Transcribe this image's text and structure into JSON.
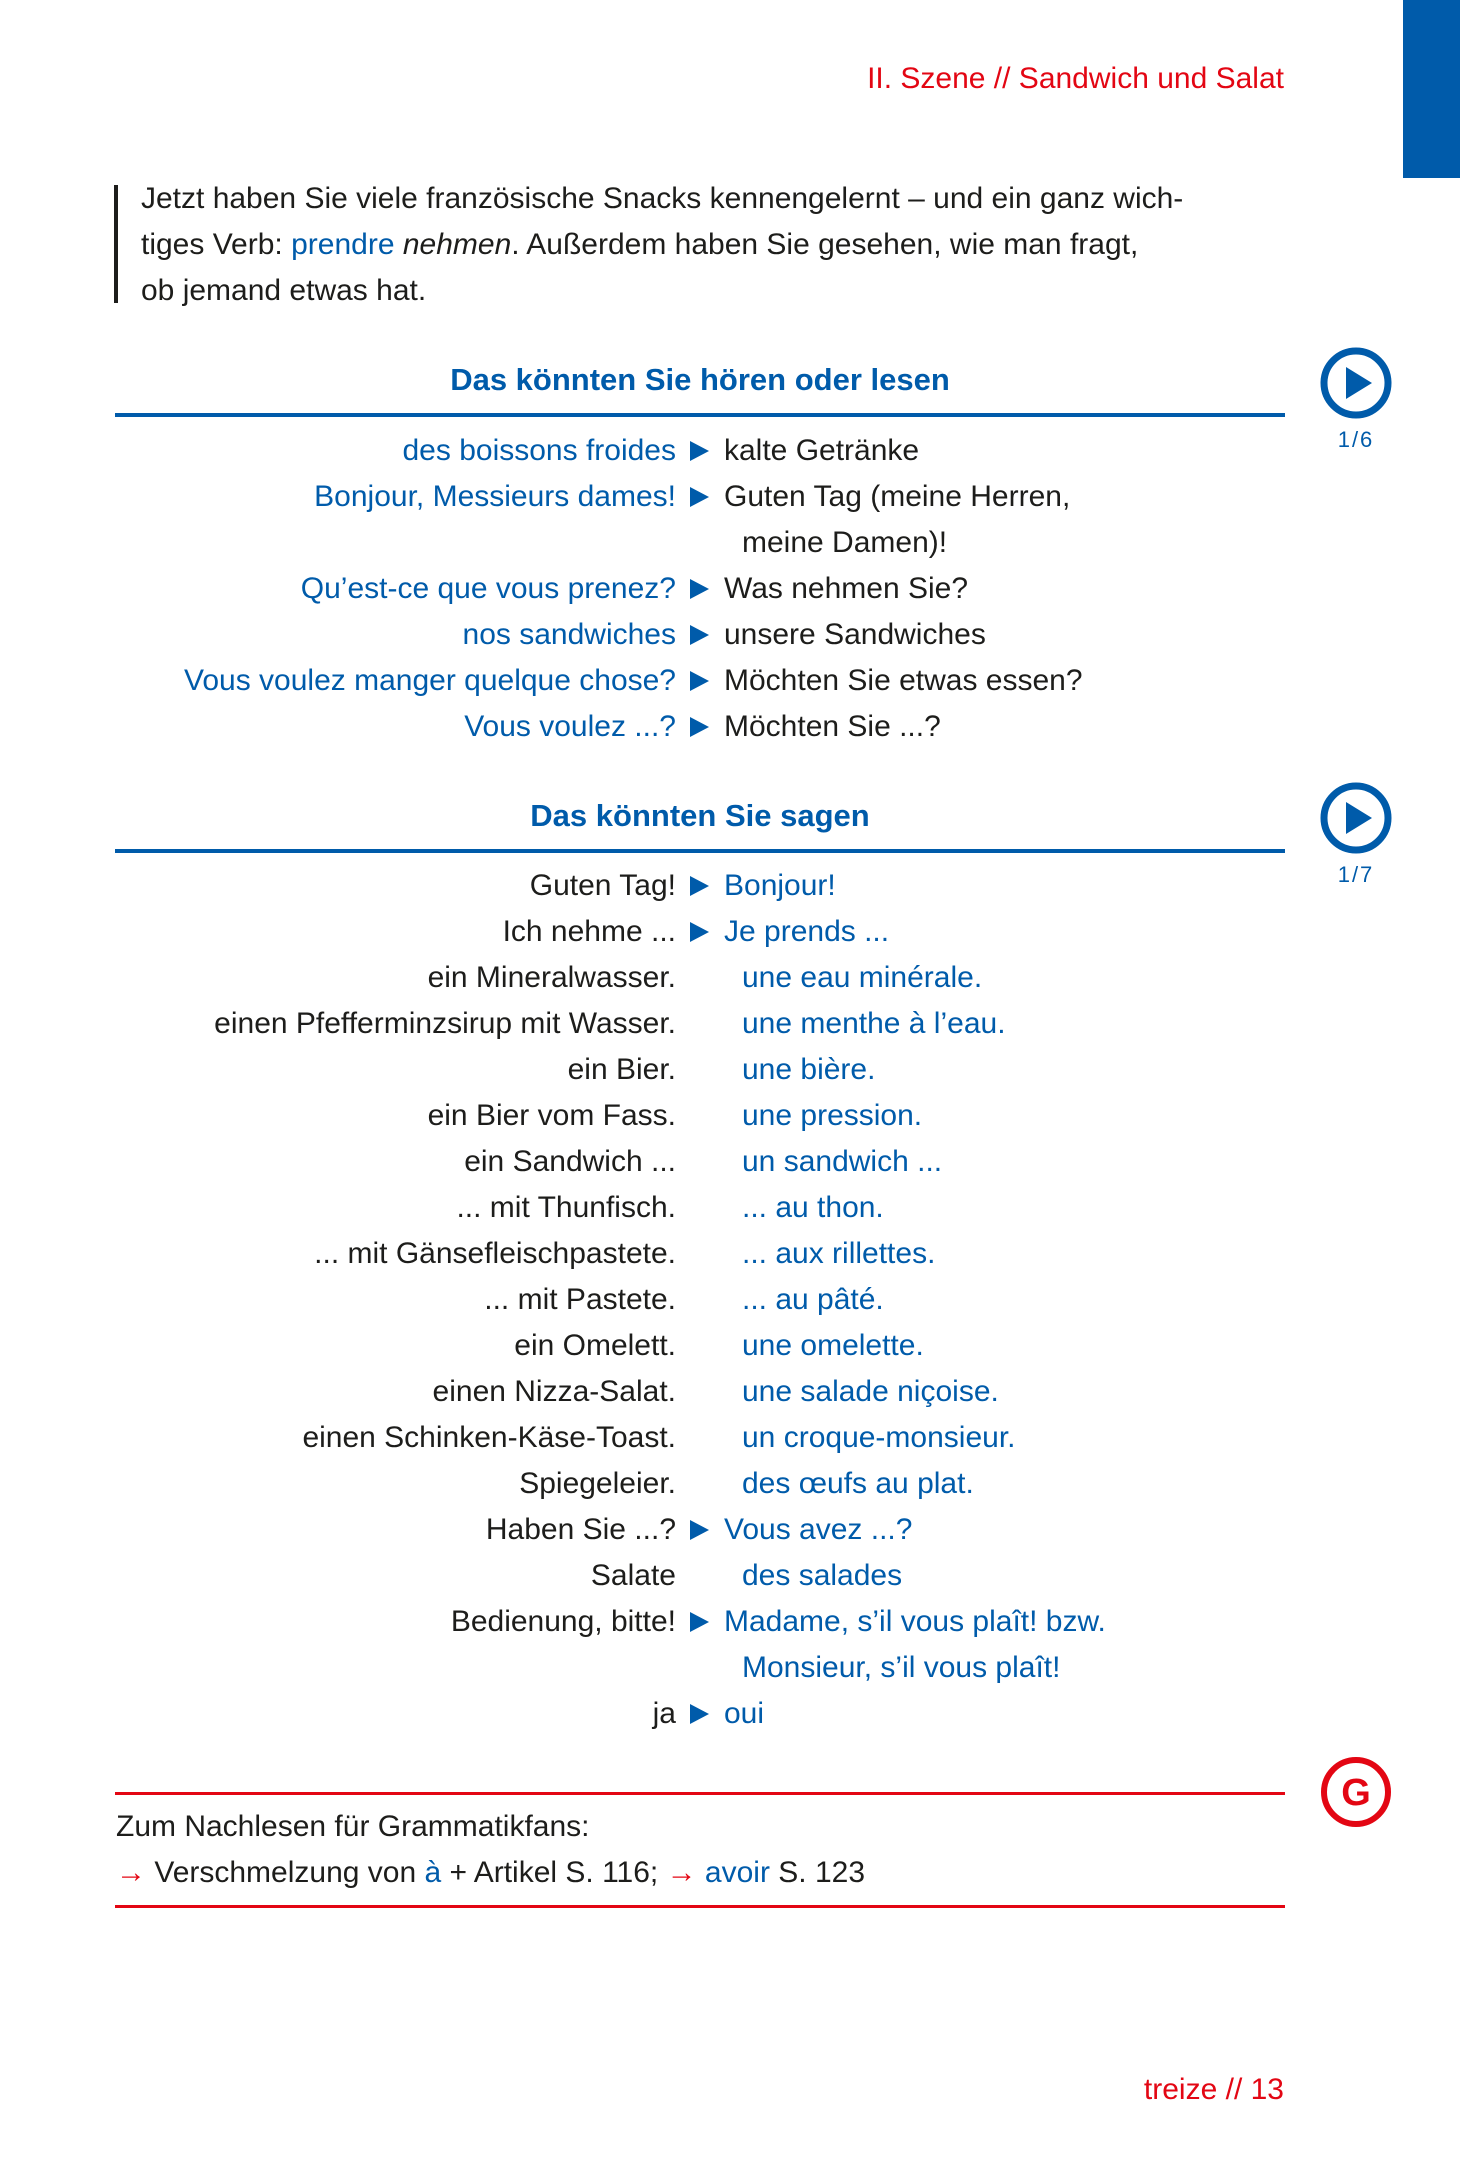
{
  "header": {
    "running_title": "II. Szene // Sandwich und Salat",
    "accent_color": "#005baa",
    "red_color": "#e30613"
  },
  "intro": {
    "part1": "Jetzt haben Sie viele französische Snacks kennengelernt – und ein ganz wich-",
    "part2": "tiges Verb: ",
    "fr_word": "prendre",
    "de_word": "nehmen",
    "part3": ". Außerdem haben Sie gesehen, wie man fragt,",
    "part4": "ob jemand etwas hat."
  },
  "section_hear": {
    "title": "Das könnten Sie hören oder lesen",
    "audio_track": "1/6",
    "icon": "play-circle-icon",
    "rows": [
      {
        "left": "des boissons froides",
        "right": "kalte Getränke",
        "arrow": true
      },
      {
        "left": "Bonjour, Messieurs dames!",
        "right": "Guten Tag (meine Herren,",
        "arrow": true
      },
      {
        "left": "",
        "right": "meine Damen)!",
        "arrow": false
      },
      {
        "left": "Qu’est-ce que vous prenez?",
        "right": "Was nehmen Sie?",
        "arrow": true
      },
      {
        "left": "nos sandwiches",
        "right": "unsere Sandwiches",
        "arrow": true
      },
      {
        "left": "Vous voulez manger quelque chose?",
        "right": "Möchten Sie etwas essen?",
        "arrow": true
      },
      {
        "left": "Vous voulez ...?",
        "right": "Möchten Sie ...?",
        "arrow": true
      }
    ]
  },
  "section_say": {
    "title": "Das könnten Sie sagen",
    "audio_track": "1/7",
    "icon": "play-circle-icon",
    "rows": [
      {
        "left": "Guten Tag!",
        "right": "Bonjour!",
        "arrow": true
      },
      {
        "left": "Ich nehme ...",
        "right": "Je prends ...",
        "arrow": true
      },
      {
        "left": "ein Mineralwasser.",
        "right": "une eau minérale.",
        "arrow": false
      },
      {
        "left": "einen Pfefferminzsirup mit Wasser.",
        "right": "une menthe à l’eau.",
        "arrow": false
      },
      {
        "left": "ein Bier.",
        "right": "une bière.",
        "arrow": false
      },
      {
        "left": "ein Bier vom Fass.",
        "right": "une pression.",
        "arrow": false
      },
      {
        "left": "ein Sandwich ...",
        "right": "un sandwich ...",
        "arrow": false
      },
      {
        "left": "... mit Thunfisch.",
        "right": "... au thon.",
        "arrow": false
      },
      {
        "left": "... mit Gänsefleischpastete.",
        "right": "... aux rillettes.",
        "arrow": false
      },
      {
        "left": "... mit Pastete.",
        "right": "... au pâté.",
        "arrow": false
      },
      {
        "left": "ein Omelett.",
        "right": "une omelette.",
        "arrow": false
      },
      {
        "left": "einen Nizza-Salat.",
        "right": "une salade niçoise.",
        "arrow": false
      },
      {
        "left": "einen Schinken-Käse-Toast.",
        "right": "un croque-monsieur.",
        "arrow": false
      },
      {
        "left": "Spiegeleier.",
        "right": "des œufs au plat.",
        "arrow": false
      },
      {
        "left": "Haben Sie ...?",
        "right": "Vous avez ...?",
        "arrow": true
      },
      {
        "left": "Salate",
        "right": "des salades",
        "arrow": false
      },
      {
        "left": "Bedienung, bitte!",
        "right": "Madame, s’il vous plaît! bzw.",
        "arrow": true
      },
      {
        "left": "",
        "right": "Monsieur, s’il vous plaît!",
        "arrow": false
      },
      {
        "left": "ja",
        "right": "oui",
        "arrow": true
      }
    ]
  },
  "grammar": {
    "icon": "grammar-g-icon",
    "intro": "Zum Nachlesen für Grammatikfans:",
    "arrow": "→",
    "ref1_text": " Verschmelzung von ",
    "ref1_word": "à",
    "ref1_rest": " + Artikel S. 116; ",
    "ref2_word": "avoir",
    "ref2_rest": " S. 123"
  },
  "footer": {
    "page_word": "treize",
    "separator": " // ",
    "page_number": "13"
  }
}
